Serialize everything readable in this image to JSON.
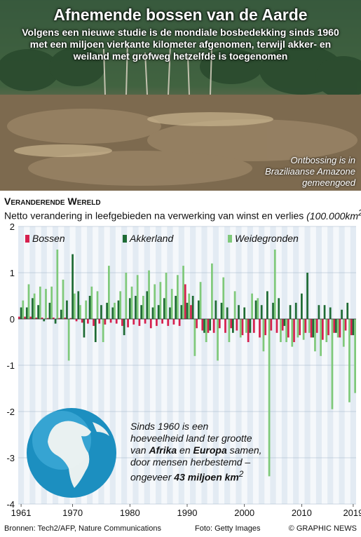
{
  "header": {
    "title": "Afnemende bossen van de Aarde",
    "subtitle": "Volgens een nieuwe studie is de mondiale bosbedekking sinds 1960 met een miljoen vierkante kilometer afgenomen, terwijl akker- en weiland met grofweg hetzelfde is toegenomen",
    "photo_caption": "Ontbossing is in Braziliaanse Amazone gemeengoed"
  },
  "section": {
    "title_first": "V",
    "title_rest": "eranderende",
    "title_word2_first": "W",
    "title_word2_rest": "ereld",
    "subtitle": "Netto verandering in leefgebieden na verwerking van winst en verlies",
    "unit": "(100.000km",
    "unit_sup": "2",
    "unit_close": ")"
  },
  "callout": {
    "part1": "Sinds 1960 is een hoeveelheid land ter grootte van ",
    "afrika": "Afrika",
    "en": " en ",
    "europa": "Europa",
    "part2": " samen, door mensen herbestemd – ongeveer ",
    "amount": "43 miljoen km",
    "amount_sup": "2"
  },
  "footer": {
    "sources": "Bronnen: Tech2/AFP, Nature Communications",
    "photo_credit": "Foto: Getty Images",
    "brand": "© GRAPHIC NEWS"
  },
  "chart_data": {
    "type": "bar",
    "x": [
      1961,
      1962,
      1963,
      1964,
      1965,
      1966,
      1967,
      1968,
      1969,
      1970,
      1971,
      1972,
      1973,
      1974,
      1975,
      1976,
      1977,
      1978,
      1979,
      1980,
      1981,
      1982,
      1983,
      1984,
      1985,
      1986,
      1987,
      1988,
      1989,
      1990,
      1991,
      1992,
      1993,
      1994,
      1995,
      1996,
      1997,
      1998,
      1999,
      2000,
      2001,
      2002,
      2003,
      2004,
      2005,
      2006,
      2007,
      2008,
      2009,
      2010,
      2011,
      2012,
      2013,
      2014,
      2015,
      2016,
      2017,
      2018,
      2019
    ],
    "x_ticks": [
      "1961",
      "1970",
      "1980",
      "1990",
      "2000",
      "2010",
      "2019"
    ],
    "ylim": [
      -4,
      2
    ],
    "y_ticks": [
      "-4",
      "-3",
      "-2",
      "-1",
      "0",
      "1",
      "2"
    ],
    "legend_position": "top",
    "series": [
      {
        "name": "Bossen",
        "color": "#d6204e",
        "values": [
          0.05,
          0.05,
          0.05,
          0.03,
          0.03,
          0.02,
          0.03,
          0.02,
          0.03,
          0.02,
          -0.05,
          -0.08,
          -0.1,
          -0.15,
          -0.1,
          -0.12,
          -0.08,
          -0.1,
          -0.15,
          -0.18,
          -0.12,
          -0.15,
          -0.1,
          -0.2,
          -0.15,
          -0.1,
          -0.15,
          -0.12,
          -0.15,
          0.75,
          0.3,
          -0.2,
          -0.25,
          -0.3,
          -0.3,
          -0.2,
          -0.3,
          -0.2,
          -0.25,
          -0.35,
          -0.5,
          -0.3,
          -0.4,
          -0.35,
          -0.25,
          -0.3,
          -0.25,
          -0.4,
          -0.5,
          -0.35,
          -0.3,
          -0.4,
          -0.3,
          -0.45,
          -0.35,
          -0.3,
          -0.4,
          -0.25,
          -0.35
        ]
      },
      {
        "name": "Akkerland",
        "color": "#1e6b34",
        "values": [
          0.25,
          0.25,
          0.45,
          0.3,
          -0.05,
          0.35,
          -0.1,
          0.2,
          0.4,
          1.4,
          0.6,
          -0.4,
          0.5,
          -0.5,
          0.3,
          0.35,
          0.25,
          0.4,
          -0.35,
          0.45,
          0.5,
          0.3,
          0.6,
          0.25,
          0.3,
          0.45,
          0.25,
          0.5,
          0.3,
          0.35,
          0.5,
          0.4,
          -0.3,
          -0.25,
          0.4,
          0.35,
          0.25,
          -0.3,
          0.3,
          0.25,
          -0.3,
          0.4,
          0.3,
          0.6,
          0.35,
          0.45,
          -0.15,
          0.3,
          0.35,
          0.55,
          1.0,
          -0.4,
          0.3,
          0.3,
          0.25,
          -0.3,
          0.2,
          0.35,
          -0.35
        ]
      },
      {
        "name": "Weidegronden",
        "color": "#7fc97a",
        "values": [
          0.4,
          0.75,
          0.55,
          0.7,
          0.65,
          0.7,
          1.5,
          0.85,
          -0.9,
          0.55,
          0.3,
          0.4,
          0.7,
          0.6,
          -0.5,
          1.15,
          0.35,
          0.6,
          1.0,
          0.7,
          0.95,
          0.5,
          1.05,
          0.75,
          0.8,
          1.0,
          0.65,
          0.95,
          1.15,
          0.55,
          -0.8,
          0.8,
          -0.5,
          1.2,
          -0.9,
          0.9,
          -0.5,
          0.6,
          -0.4,
          -0.3,
          0.55,
          0.45,
          -0.7,
          -3.4,
          1.5,
          -0.5,
          -0.5,
          -0.6,
          -0.4,
          -0.45,
          -0.3,
          -0.7,
          -0.8,
          -0.5,
          -1.95,
          -0.4,
          -0.6,
          -1.8,
          -1.6
        ]
      }
    ]
  }
}
